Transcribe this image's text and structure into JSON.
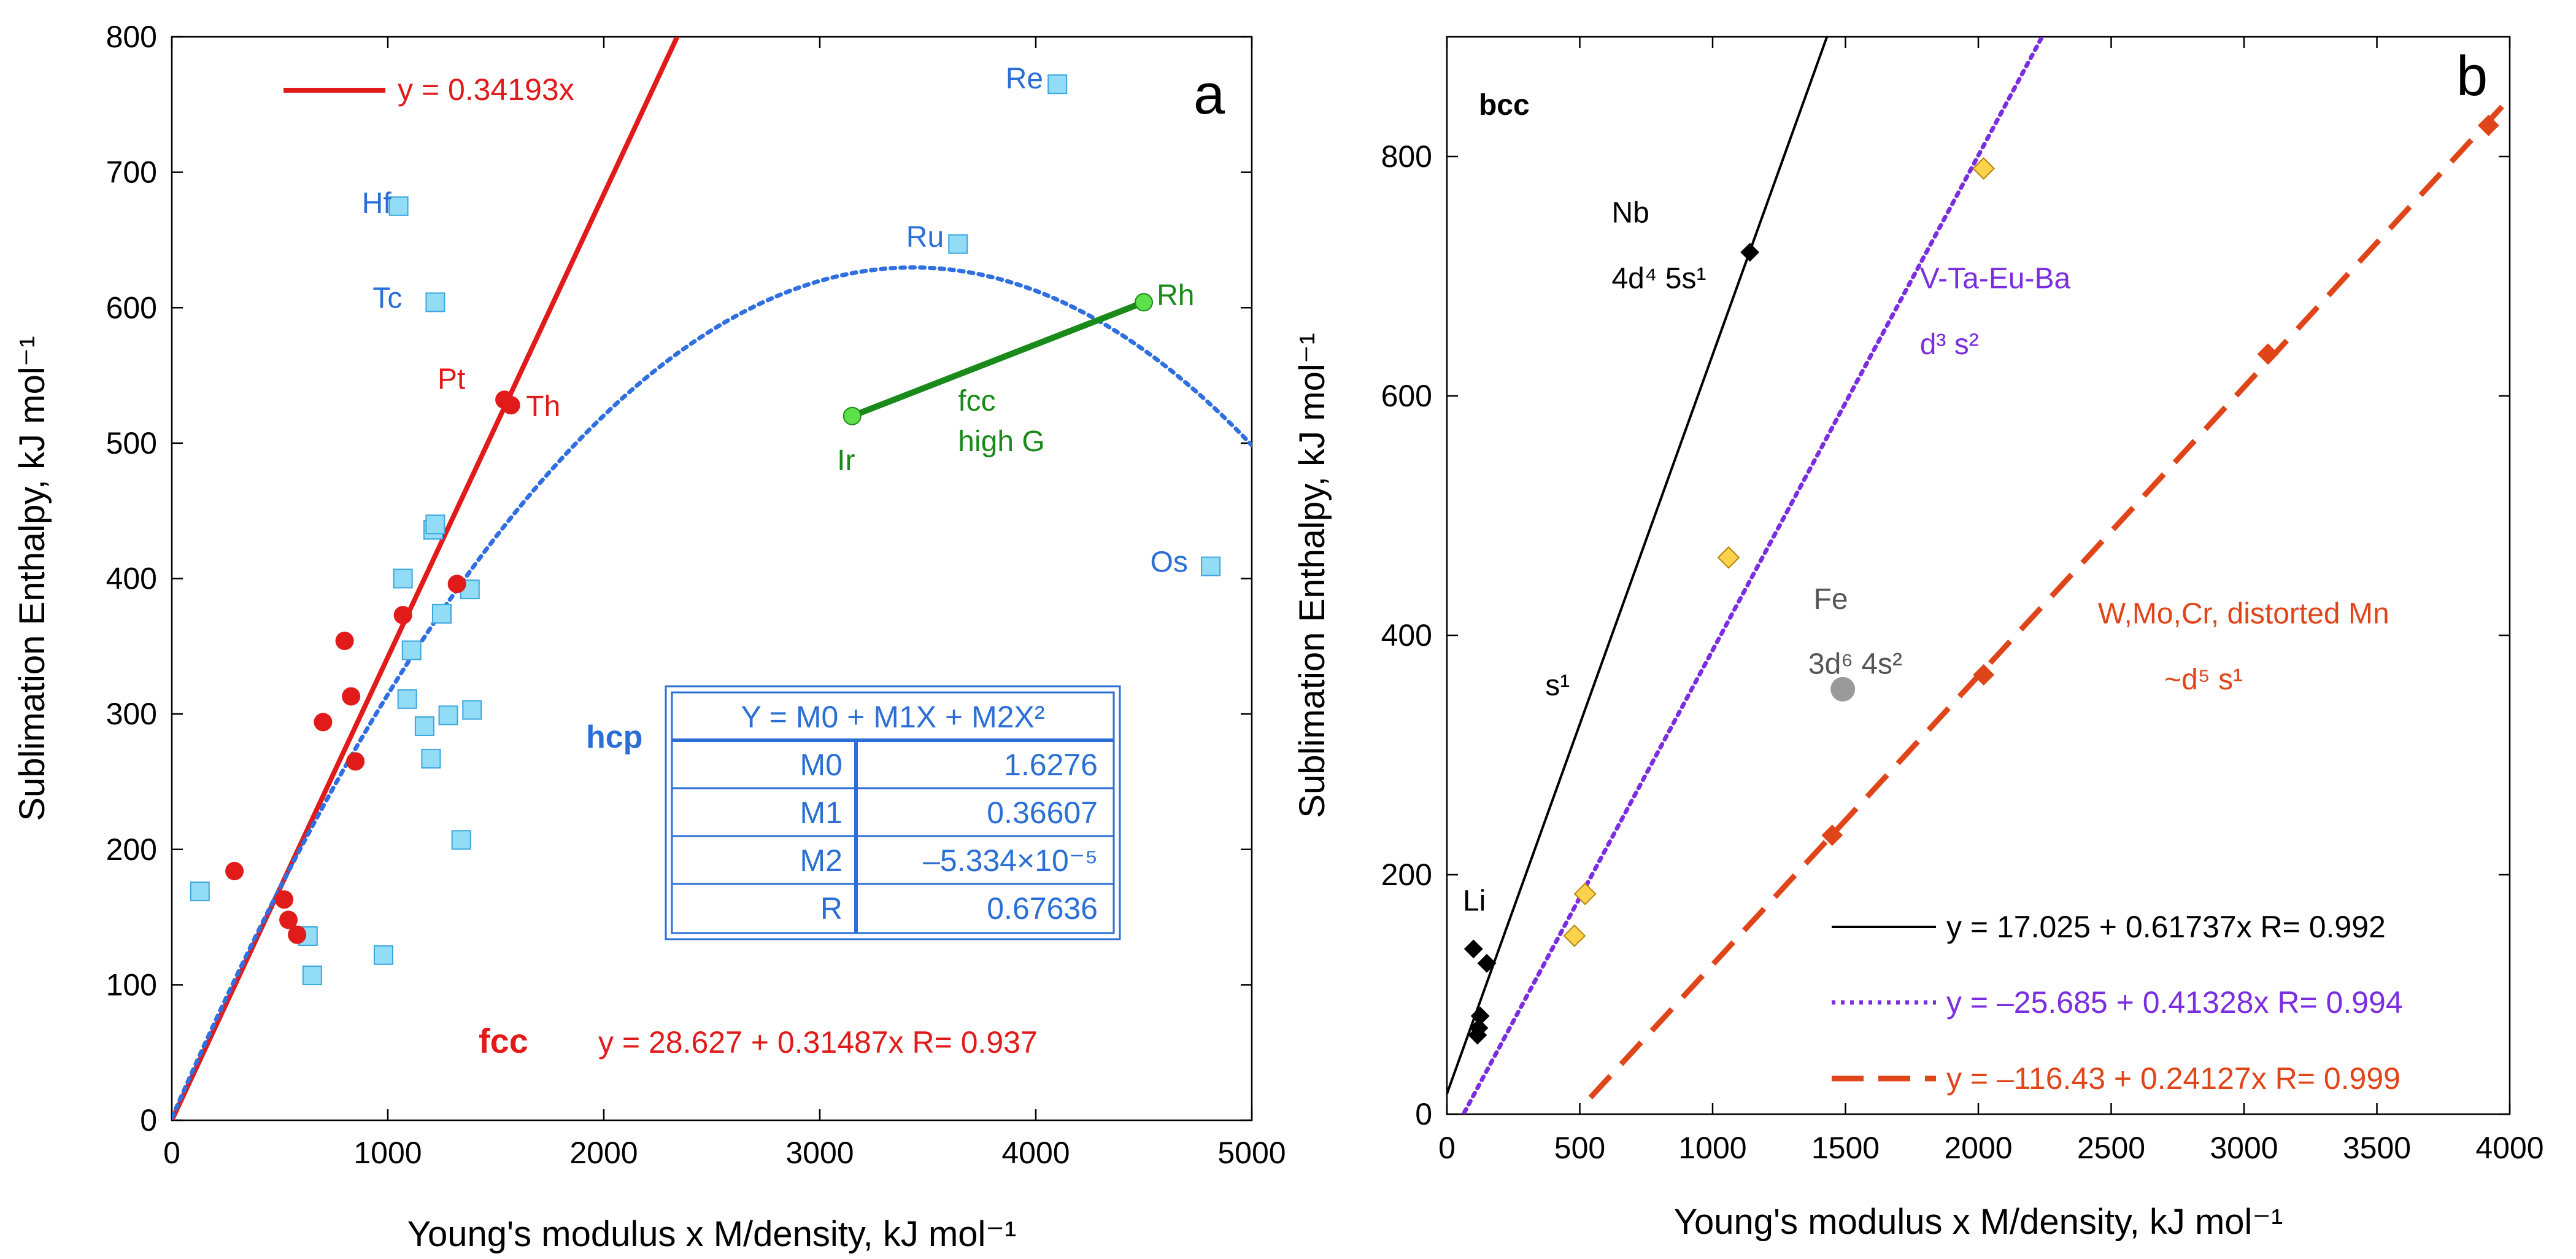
{
  "colors": {
    "red": "#e11a1a",
    "blue_text": "#2b6fd6",
    "blue_curve": "#2f6fe0",
    "hcp_fill": "#93dcf5",
    "hcp_stroke": "#3aa6e0",
    "green": "#1a8a1a",
    "green_dot": "#5ee04a",
    "black": "#000000",
    "purple": "#7a2ee0",
    "diamond_fill": "#ffd24d",
    "orange": "#e0451a",
    "gray": "#9a9a9a"
  },
  "chart_data": [
    {
      "panel": "a",
      "type": "scatter",
      "xlabel": "Young's modulus x M/density, kJ mol⁻¹",
      "ylabel": "Sublimation Enthalpy, kJ mol⁻¹",
      "xlim": [
        0,
        5000
      ],
      "ylim": [
        0,
        800
      ],
      "xticks": [
        "0",
        "1000",
        "2000",
        "3000",
        "4000",
        "5000"
      ],
      "yticks": [
        "0",
        "100",
        "200",
        "300",
        "400",
        "500",
        "600",
        "700",
        "800"
      ],
      "series": [
        {
          "marker": "circle",
          "color": "#e11a1a",
          "points": [
            [
              290,
              184
            ],
            [
              520,
              163
            ],
            [
              540,
              148
            ],
            [
              580,
              137
            ],
            [
              700,
              294
            ],
            [
              800,
              354
            ],
            [
              830,
              313
            ],
            [
              850,
              265
            ],
            [
              1070,
              373
            ],
            [
              1320,
              396
            ],
            [
              1540,
              532
            ],
            [
              1570,
              528
            ]
          ]
        },
        {
          "marker": "square",
          "color": "#93dcf5",
          "points": [
            [
              130,
              169
            ],
            [
              630,
              136
            ],
            [
              650,
              107
            ],
            [
              980,
              122
            ],
            [
              1050,
              675
            ],
            [
              1070,
              400
            ],
            [
              1090,
              311
            ],
            [
              1110,
              347
            ],
            [
              1170,
              291
            ],
            [
              1200,
              267
            ],
            [
              1210,
              436
            ],
            [
              1220,
              604
            ],
            [
              1220,
              440
            ],
            [
              1250,
              374
            ],
            [
              1280,
              299
            ],
            [
              1340,
              207
            ],
            [
              1380,
              392
            ],
            [
              1390,
              303
            ],
            [
              3640,
              647
            ],
            [
              4100,
              765
            ],
            [
              4810,
              409
            ]
          ]
        }
      ],
      "lines": [
        {
          "style": "solid",
          "color": "#e11a1a",
          "intercept": 0,
          "slope": 0.34193
        },
        {
          "style": "dotted",
          "color": "#2f6fe0",
          "quadratic": [
            1.6276,
            0.36607,
            -5.334e-05
          ]
        },
        {
          "style": "solid",
          "color": "#1a8a1a",
          "points": [
            [
              3150,
              520
            ],
            [
              4500,
              604
            ]
          ]
        }
      ],
      "point_labels": [
        {
          "text": "Re",
          "x": 3860,
          "y": 762,
          "color": "#2b6fd6"
        },
        {
          "text": "Hf",
          "x": 880,
          "y": 670,
          "color": "#2b6fd6"
        },
        {
          "text": "Ru",
          "x": 3400,
          "y": 645,
          "color": "#2b6fd6"
        },
        {
          "text": "Tc",
          "x": 930,
          "y": 600,
          "color": "#2b6fd6"
        },
        {
          "text": "Pt",
          "x": 1230,
          "y": 540,
          "color": "#e11a1a"
        },
        {
          "text": "Th",
          "x": 1640,
          "y": 520,
          "color": "#e11a1a"
        },
        {
          "text": "Rh",
          "x": 4560,
          "y": 602,
          "color": "#1a8a1a"
        },
        {
          "text": "Ir",
          "x": 3080,
          "y": 480,
          "color": "#1a8a1a"
        },
        {
          "text": "fcc",
          "x": 3640,
          "y": 524,
          "color": "#1a8a1a"
        },
        {
          "text": "high G",
          "x": 3640,
          "y": 494,
          "color": "#1a8a1a"
        },
        {
          "text": "Os",
          "x": 4530,
          "y": 405,
          "color": "#2b6fd6"
        }
      ],
      "legend": {
        "label": "y = 0.34193x",
        "color": "#e11a1a"
      },
      "fcc_label": "fcc",
      "fcc_equation": "y = 28.627 + 0.31487x   R= 0.937",
      "hcp_label": "hcp",
      "hcp_table": {
        "header": "Y = M0 + M1X + M2X²",
        "rows": [
          [
            "M0",
            "1.6276"
          ],
          [
            "M1",
            "0.36607"
          ],
          [
            "M2",
            "–5.334×10⁻⁵"
          ],
          [
            "R",
            "0.67636"
          ]
        ]
      },
      "panel_letter": "a"
    },
    {
      "panel": "b",
      "type": "scatter",
      "xlabel": "Young's modulus x M/density, kJ mol⁻¹",
      "ylabel": "Sublimation Enthalpy, kJ mol⁻¹",
      "xlim": [
        0,
        4000
      ],
      "ylim": [
        0,
        900
      ],
      "xticks": [
        "0",
        "500",
        "1000",
        "1500",
        "2000",
        "2500",
        "3000",
        "3500",
        "4000"
      ],
      "yticks": [
        "0",
        "200",
        "400",
        "600",
        "800"
      ],
      "series": [
        {
          "name": "s1",
          "marker": "diamond",
          "color": "#000000",
          "points": [
            [
              100,
              138
            ],
            [
              150,
              126
            ],
            [
              125,
              82
            ],
            [
              120,
              72
            ],
            [
              115,
              66
            ],
            [
              1140,
              720
            ]
          ]
        },
        {
          "name": "d3s2",
          "marker": "diamond",
          "color": "#ffd24d",
          "points": [
            [
              480,
              149
            ],
            [
              520,
              184
            ],
            [
              1060,
              465
            ],
            [
              2020,
              790
            ]
          ]
        },
        {
          "name": "d5s1",
          "marker": "diamond",
          "color": "#e0451a",
          "points": [
            [
              1450,
              233
            ],
            [
              2020,
              367
            ],
            [
              3090,
              635
            ],
            [
              3920,
              826
            ]
          ]
        },
        {
          "name": "Fe",
          "marker": "circle",
          "color": "#9a9a9a",
          "points": [
            [
              1490,
              355
            ]
          ]
        }
      ],
      "fit_lines": [
        {
          "style": "solid",
          "color": "#000000",
          "intercept": 17.025,
          "slope": 0.61737,
          "label": "y = 17.025 + 0.61737x   R= 0.992"
        },
        {
          "style": "dotted",
          "color": "#7a2ee0",
          "intercept": -25.685,
          "slope": 0.41328,
          "label": "y = –25.685 + 0.41328x   R= 0.994"
        },
        {
          "style": "dashed",
          "color": "#e0451a",
          "intercept": -116.43,
          "slope": 0.24127,
          "label": "y = –116.43 + 0.24127x   R= 0.999"
        }
      ],
      "annotations": [
        {
          "text": "bcc",
          "x": 120,
          "y": 835,
          "color": "#000000",
          "bold": true
        },
        {
          "text": "Nb",
          "x": 620,
          "y": 745,
          "color": "#000000"
        },
        {
          "text": "4d⁴ 5s¹",
          "x": 620,
          "y": 690,
          "color": "#000000"
        },
        {
          "text": "V-Ta-Eu-Ba",
          "x": 1780,
          "y": 690,
          "color": "#7a2ee0"
        },
        {
          "text": "d³ s²",
          "x": 1780,
          "y": 635,
          "color": "#7a2ee0"
        },
        {
          "text": "Fe",
          "x": 1380,
          "y": 422,
          "color": "#555555"
        },
        {
          "text": "3d⁶ 4s²",
          "x": 1360,
          "y": 368,
          "color": "#555555"
        },
        {
          "text": "W,Mo,Cr, distorted Mn",
          "x": 2450,
          "y": 410,
          "color": "#e0451a"
        },
        {
          "text": "~d⁵ s¹",
          "x": 2700,
          "y": 355,
          "color": "#e0451a"
        },
        {
          "text": "s¹",
          "x": 370,
          "y": 350,
          "color": "#000000"
        },
        {
          "text": "Li",
          "x": 60,
          "y": 170,
          "color": "#000000"
        }
      ],
      "panel_letter": "b"
    }
  ]
}
